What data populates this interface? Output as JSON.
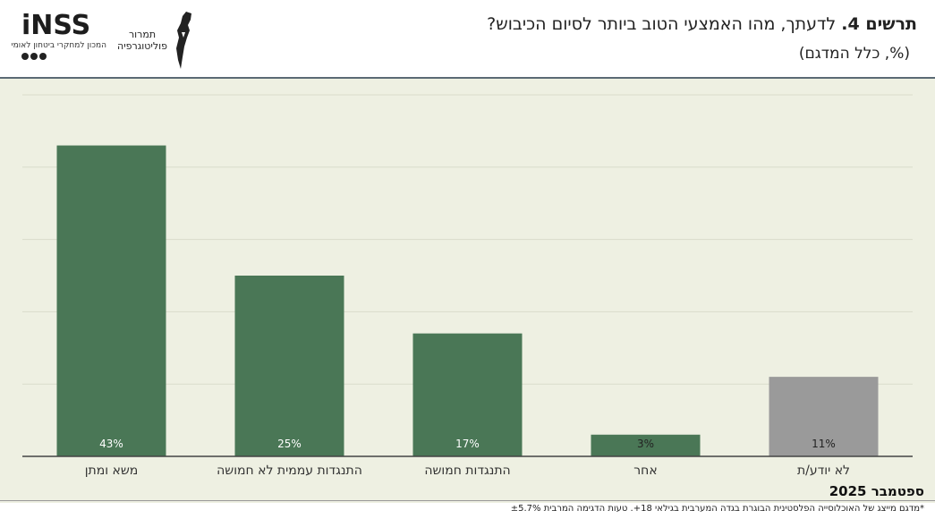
{
  "header": {
    "figure_label": "תרשים 4.",
    "question": "לדעתך, מהו האמצעי הטוב ביותר לסיום הכיבוש?",
    "subtitle": "(%, כלל המדגם)"
  },
  "logos": {
    "inss_word": "iNSS",
    "inss_line": "המכון למחקרי ביטחון לאומי",
    "tamrur_line1": "תמרור",
    "tamrur_line2": "פוליטוגרפיה"
  },
  "colors": {
    "bar_green": "#4a7756",
    "bar_gray": "#9a9a9a",
    "plot_bg": "#eef0e2",
    "grid": "#d9dccb"
  },
  "chart_data": {
    "type": "bar",
    "categories": [
      "משא ומתן",
      "התנגדות עממית לא חמושה",
      "התנגדות חמושה",
      "אחר",
      "לא יודע/ת"
    ],
    "values": [
      43,
      25,
      17,
      3,
      11
    ],
    "value_labels": [
      "43%",
      "25%",
      "17%",
      "3%",
      "11%"
    ],
    "bar_colors": [
      "#4a7756",
      "#4a7756",
      "#4a7756",
      "#4a7756",
      "#9a9a9a"
    ],
    "ylim": [
      0,
      50
    ],
    "grid": true
  },
  "footer": {
    "date": "ספטמבר 2025",
    "note": "*מדגם מייצג של האוכלוסייה הפלסטינית הבוגרת בגדה המערבית בגילאי 18+. טעות הדגימה המרבית ±5.7%"
  }
}
